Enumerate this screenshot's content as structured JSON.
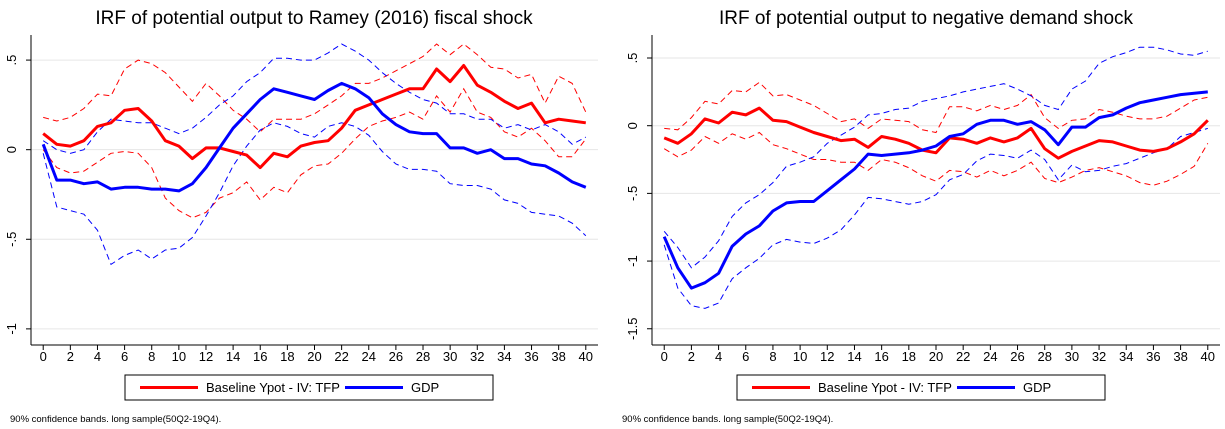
{
  "chart_data": [
    {
      "type": "line",
      "title": "IRF of potential output to Ramey (2016) fiscal shock",
      "x": [
        0,
        1,
        2,
        3,
        4,
        5,
        6,
        7,
        8,
        9,
        10,
        11,
        12,
        13,
        14,
        15,
        16,
        17,
        18,
        19,
        20,
        21,
        22,
        23,
        24,
        25,
        26,
        27,
        28,
        29,
        30,
        31,
        32,
        33,
        34,
        35,
        36,
        37,
        38,
        39,
        40
      ],
      "xlim": [
        -0.9,
        40.9
      ],
      "xticks": [
        0,
        2,
        4,
        6,
        8,
        10,
        12,
        14,
        16,
        18,
        20,
        22,
        24,
        26,
        28,
        30,
        32,
        34,
        36,
        38,
        40
      ],
      "ylim": [
        -1.09,
        0.64
      ],
      "yticks": [
        {
          "value": -1,
          "label": "-1"
        },
        {
          "value": -0.5,
          "label": "-.5"
        },
        0,
        {
          "value": 0.5,
          "label": ".5"
        }
      ],
      "grid": true,
      "note": "90% confidence bands. long sample(50Q2-19Q4).",
      "series": [
        {
          "name": "Baseline Ypot - IV: TFP",
          "color": "#ff0000",
          "values": [
            0.09,
            0.03,
            0.02,
            0.05,
            0.13,
            0.15,
            0.22,
            0.23,
            0.16,
            0.05,
            0.02,
            -0.05,
            0.01,
            0.01,
            -0.01,
            -0.03,
            -0.1,
            -0.02,
            -0.04,
            0.02,
            0.04,
            0.05,
            0.12,
            0.22,
            0.25,
            0.28,
            0.31,
            0.34,
            0.34,
            0.45,
            0.38,
            0.47,
            0.36,
            0.32,
            0.27,
            0.23,
            0.26,
            0.15,
            0.17,
            0.16,
            0.15
          ],
          "upper": [
            0.18,
            0.16,
            0.18,
            0.23,
            0.31,
            0.3,
            0.45,
            0.5,
            0.48,
            0.43,
            0.35,
            0.27,
            0.37,
            0.3,
            0.22,
            0.17,
            0.1,
            0.17,
            0.17,
            0.17,
            0.2,
            0.25,
            0.3,
            0.37,
            0.37,
            0.4,
            0.44,
            0.48,
            0.52,
            0.59,
            0.53,
            0.59,
            0.53,
            0.46,
            0.45,
            0.4,
            0.42,
            0.26,
            0.41,
            0.37,
            0.21
          ],
          "lower": [
            0.0,
            -0.1,
            -0.13,
            -0.12,
            -0.07,
            -0.02,
            -0.01,
            -0.02,
            -0.1,
            -0.27,
            -0.34,
            -0.38,
            -0.35,
            -0.27,
            -0.24,
            -0.18,
            -0.28,
            -0.21,
            -0.24,
            -0.14,
            -0.09,
            -0.08,
            -0.02,
            0.06,
            0.13,
            0.16,
            0.18,
            0.21,
            0.17,
            0.3,
            0.21,
            0.34,
            0.21,
            0.18,
            0.1,
            0.07,
            0.12,
            0.05,
            -0.04,
            -0.04,
            0.06
          ]
        },
        {
          "name": "GDP",
          "color": "#0000ff",
          "values": [
            0.03,
            -0.17,
            -0.17,
            -0.19,
            -0.18,
            -0.22,
            -0.21,
            -0.21,
            -0.22,
            -0.22,
            -0.23,
            -0.19,
            -0.1,
            0.01,
            0.12,
            0.2,
            0.28,
            0.34,
            0.32,
            0.3,
            0.28,
            0.33,
            0.37,
            0.34,
            0.29,
            0.2,
            0.14,
            0.1,
            0.09,
            0.09,
            0.01,
            0.01,
            -0.02,
            0.0,
            -0.05,
            -0.05,
            -0.08,
            -0.09,
            -0.13,
            -0.18,
            -0.21
          ],
          "upper": [
            0.05,
            0.0,
            -0.02,
            0.0,
            0.1,
            0.17,
            0.16,
            0.15,
            0.15,
            0.12,
            0.09,
            0.12,
            0.18,
            0.25,
            0.3,
            0.38,
            0.43,
            0.51,
            0.51,
            0.5,
            0.5,
            0.54,
            0.59,
            0.55,
            0.5,
            0.43,
            0.37,
            0.32,
            0.28,
            0.26,
            0.2,
            0.2,
            0.17,
            0.17,
            0.12,
            0.14,
            0.11,
            0.14,
            0.1,
            0.03,
            0.07
          ],
          "lower": [
            -0.02,
            -0.32,
            -0.34,
            -0.36,
            -0.45,
            -0.64,
            -0.59,
            -0.56,
            -0.61,
            -0.56,
            -0.55,
            -0.49,
            -0.37,
            -0.24,
            -0.09,
            0.02,
            0.11,
            0.15,
            0.13,
            0.09,
            0.07,
            0.13,
            0.15,
            0.13,
            0.08,
            -0.01,
            -0.08,
            -0.11,
            -0.11,
            -0.12,
            -0.19,
            -0.2,
            -0.2,
            -0.22,
            -0.28,
            -0.3,
            -0.35,
            -0.36,
            -0.37,
            -0.41,
            -0.48
          ]
        }
      ]
    },
    {
      "type": "line",
      "title": "IRF of potential output to negative demand shock",
      "x": [
        0,
        1,
        2,
        3,
        4,
        5,
        6,
        7,
        8,
        9,
        10,
        11,
        12,
        13,
        14,
        15,
        16,
        17,
        18,
        19,
        20,
        21,
        22,
        23,
        24,
        25,
        26,
        27,
        28,
        29,
        30,
        31,
        32,
        33,
        34,
        35,
        36,
        37,
        38,
        39,
        40
      ],
      "xlim": [
        -0.9,
        40.9
      ],
      "xticks": [
        0,
        2,
        4,
        6,
        8,
        10,
        12,
        14,
        16,
        18,
        20,
        22,
        24,
        26,
        28,
        30,
        32,
        34,
        36,
        38,
        40
      ],
      "ylim": [
        -1.62,
        0.67
      ],
      "yticks": [
        {
          "value": -1.5,
          "label": "-1.5"
        },
        {
          "value": -1,
          "label": "-1"
        },
        {
          "value": -0.5,
          "label": "-.5"
        },
        0,
        {
          "value": 0.5,
          "label": ".5"
        }
      ],
      "grid": true,
      "note": "90% confidence bands. long sample(50Q2-19Q4).",
      "series": [
        {
          "name": "Baseline Ypot - IV: TFP",
          "color": "#ff0000",
          "values": [
            -0.09,
            -0.13,
            -0.06,
            0.05,
            0.02,
            0.1,
            0.08,
            0.13,
            0.04,
            0.03,
            -0.01,
            -0.05,
            -0.08,
            -0.11,
            -0.1,
            -0.16,
            -0.08,
            -0.1,
            -0.13,
            -0.18,
            -0.2,
            -0.09,
            -0.1,
            -0.13,
            -0.09,
            -0.12,
            -0.09,
            -0.02,
            -0.17,
            -0.24,
            -0.19,
            -0.15,
            -0.11,
            -0.12,
            -0.15,
            -0.18,
            -0.19,
            -0.17,
            -0.12,
            -0.06,
            0.04
          ],
          "upper": [
            -0.02,
            -0.03,
            0.06,
            0.18,
            0.16,
            0.26,
            0.25,
            0.32,
            0.22,
            0.23,
            0.19,
            0.15,
            0.09,
            0.03,
            0.05,
            -0.02,
            0.05,
            0.04,
            0.03,
            -0.03,
            -0.05,
            0.14,
            0.14,
            0.11,
            0.15,
            0.12,
            0.15,
            0.23,
            0.06,
            -0.02,
            0.04,
            0.05,
            0.12,
            0.1,
            0.07,
            0.05,
            0.05,
            0.07,
            0.13,
            0.19,
            0.21
          ],
          "lower": [
            -0.17,
            -0.23,
            -0.18,
            -0.08,
            -0.13,
            -0.06,
            -0.1,
            -0.05,
            -0.14,
            -0.17,
            -0.21,
            -0.25,
            -0.25,
            -0.27,
            -0.27,
            -0.33,
            -0.25,
            -0.27,
            -0.31,
            -0.37,
            -0.41,
            -0.33,
            -0.34,
            -0.38,
            -0.33,
            -0.37,
            -0.33,
            -0.27,
            -0.39,
            -0.42,
            -0.38,
            -0.33,
            -0.31,
            -0.34,
            -0.37,
            -0.42,
            -0.44,
            -0.41,
            -0.36,
            -0.3,
            -0.13
          ]
        },
        {
          "name": "GDP",
          "color": "#0000ff",
          "values": [
            -0.82,
            -1.05,
            -1.2,
            -1.16,
            -1.09,
            -0.89,
            -0.8,
            -0.74,
            -0.63,
            -0.57,
            -0.56,
            -0.56,
            -0.48,
            -0.4,
            -0.32,
            -0.21,
            -0.22,
            -0.21,
            -0.2,
            -0.18,
            -0.15,
            -0.08,
            -0.06,
            0.01,
            0.04,
            0.04,
            0.01,
            0.03,
            -0.03,
            -0.14,
            -0.01,
            -0.01,
            0.06,
            0.08,
            0.13,
            0.17,
            0.19,
            0.21,
            0.23,
            0.24,
            0.25
          ],
          "upper": [
            -0.78,
            -0.9,
            -1.05,
            -0.97,
            -0.85,
            -0.67,
            -0.57,
            -0.51,
            -0.42,
            -0.3,
            -0.27,
            -0.23,
            -0.13,
            -0.07,
            -0.01,
            0.08,
            0.09,
            0.12,
            0.13,
            0.18,
            0.2,
            0.22,
            0.25,
            0.27,
            0.29,
            0.31,
            0.27,
            0.22,
            0.15,
            0.12,
            0.27,
            0.33,
            0.46,
            0.51,
            0.54,
            0.58,
            0.58,
            0.56,
            0.53,
            0.52,
            0.55
          ],
          "lower": [
            -0.88,
            -1.2,
            -1.33,
            -1.35,
            -1.31,
            -1.13,
            -1.05,
            -0.98,
            -0.88,
            -0.84,
            -0.86,
            -0.87,
            -0.83,
            -0.77,
            -0.66,
            -0.53,
            -0.54,
            -0.56,
            -0.58,
            -0.56,
            -0.51,
            -0.4,
            -0.36,
            -0.26,
            -0.21,
            -0.22,
            -0.24,
            -0.18,
            -0.25,
            -0.4,
            -0.29,
            -0.34,
            -0.33,
            -0.3,
            -0.28,
            -0.24,
            -0.2,
            -0.17,
            -0.08,
            -0.05,
            -0.02
          ]
        }
      ]
    }
  ]
}
